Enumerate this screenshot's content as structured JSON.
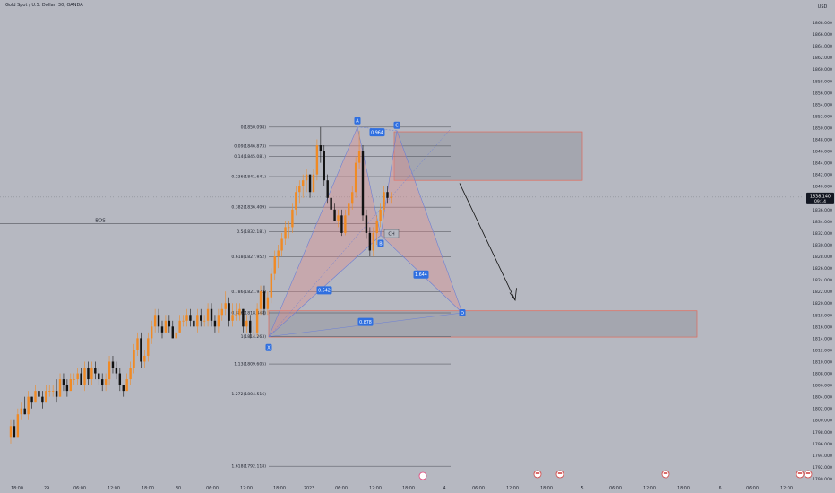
{
  "header": {
    "title": "Gold Spot / U.S. Dollar, 30, OANDA"
  },
  "chart_data": {
    "type": "candlestick",
    "currency": "USD",
    "ylim": [
      1790,
      1870
    ],
    "y_ticks": [
      "1790.000",
      "1792.000",
      "1794.000",
      "1796.000",
      "1798.000",
      "1800.000",
      "1802.000",
      "1804.000",
      "1806.000",
      "1808.000",
      "1810.000",
      "1812.000",
      "1814.000",
      "1816.000",
      "1818.000",
      "1820.000",
      "1822.000",
      "1824.000",
      "1826.000",
      "1828.000",
      "1830.000",
      "1832.000",
      "1834.000",
      "1836.000",
      "1838.000",
      "1840.000",
      "1842.000",
      "1844.000",
      "1846.000",
      "1848.000",
      "1850.000",
      "1852.000",
      "1854.000",
      "1856.000",
      "1858.000",
      "1860.000",
      "1862.000",
      "1864.000",
      "1866.000",
      "1868.000"
    ],
    "x_ticks": [
      "18:00",
      "29",
      "06:00",
      "12:00",
      "18:00",
      "30",
      "06:00",
      "12:00",
      "18:00",
      "2023",
      "06:00",
      "12:00",
      "18:00",
      "4",
      "06:00",
      "12:00",
      "18:00",
      "5",
      "06:00",
      "12:00",
      "18:00",
      "6",
      "06:00",
      "12:00"
    ],
    "current_price": {
      "value": "1838.140",
      "countdown": "09:14"
    },
    "fib_levels": [
      {
        "label": "0(1850.098)",
        "price": 1850.098
      },
      {
        "label": "0.09(1846.873)",
        "price": 1846.873
      },
      {
        "label": "0.14(1845.081)",
        "price": 1845.081
      },
      {
        "label": "0.236(1841.641)",
        "price": 1841.641
      },
      {
        "label": "0.382(1836.409)",
        "price": 1836.409
      },
      {
        "label": "0.5(1832.181)",
        "price": 1832.181
      },
      {
        "label": "0.618(1827.952)",
        "price": 1827.952
      },
      {
        "label": "0.786(1821.932)",
        "price": 1821.932
      },
      {
        "label": "0.886(1818.348)",
        "price": 1818.348
      },
      {
        "label": "1(1814.263)",
        "price": 1814.263
      },
      {
        "label": "1.13(1809.605)",
        "price": 1809.605
      },
      {
        "label": "1.272(1804.516)",
        "price": 1804.516
      },
      {
        "label": "1.618(1792.118)",
        "price": 1792.118
      }
    ],
    "pattern_points": [
      "X",
      "A",
      "B",
      "C",
      "D"
    ],
    "ratios": [
      "0.964",
      "0.542",
      "1.644",
      "0.878"
    ],
    "annotations": {
      "bos": "BOS",
      "ch": "CH"
    },
    "zones": [
      {
        "name": "supply",
        "top": 1849.3,
        "bottom": 1841.0
      },
      {
        "name": "demand",
        "top": 1818.7,
        "bottom": 1814.2
      }
    ],
    "bos_price": 1833.6,
    "candles": [
      [
        1797,
        1800,
        1796,
        1799
      ],
      [
        1799,
        1800,
        1797,
        1797
      ],
      [
        1797,
        1802,
        1797,
        1801
      ],
      [
        1801,
        1803,
        1800,
        1802
      ],
      [
        1802,
        1804,
        1801,
        1801
      ],
      [
        1801,
        1805,
        1800,
        1804
      ],
      [
        1804,
        1804,
        1802,
        1803
      ],
      [
        1803,
        1806,
        1803,
        1805
      ],
      [
        1805,
        1807,
        1804,
        1804
      ],
      [
        1804,
        1805,
        1802,
        1803
      ],
      [
        1803,
        1806,
        1803,
        1805
      ],
      [
        1805,
        1806,
        1804,
        1805
      ],
      [
        1805,
        1806,
        1804,
        1805
      ],
      [
        1805,
        1807,
        1803,
        1804
      ],
      [
        1804,
        1808,
        1804,
        1807
      ],
      [
        1807,
        1808,
        1805,
        1806
      ],
      [
        1806,
        1807,
        1804,
        1805
      ],
      [
        1805,
        1808,
        1805,
        1807
      ],
      [
        1807,
        1808,
        1806,
        1807
      ],
      [
        1807,
        1809,
        1806,
        1808
      ],
      [
        1808,
        1809,
        1806,
        1806
      ],
      [
        1806,
        1810,
        1805,
        1809
      ],
      [
        1809,
        1810,
        1806,
        1807
      ],
      [
        1807,
        1810,
        1806,
        1809
      ],
      [
        1809,
        1810,
        1807,
        1808
      ],
      [
        1808,
        1809,
        1806,
        1807
      ],
      [
        1807,
        1808,
        1805,
        1806
      ],
      [
        1806,
        1808,
        1805,
        1807
      ],
      [
        1807,
        1811,
        1806,
        1810
      ],
      [
        1810,
        1811,
        1808,
        1809
      ],
      [
        1809,
        1810,
        1807,
        1808
      ],
      [
        1808,
        1809,
        1805,
        1806
      ],
      [
        1806,
        1806,
        1804,
        1805
      ],
      [
        1805,
        1808,
        1805,
        1807
      ],
      [
        1807,
        1810,
        1806,
        1809
      ],
      [
        1809,
        1813,
        1808,
        1812
      ],
      [
        1812,
        1815,
        1811,
        1814
      ],
      [
        1814,
        1815,
        1809,
        1810
      ],
      [
        1810,
        1812,
        1809,
        1811
      ],
      [
        1811,
        1815,
        1810,
        1814
      ],
      [
        1814,
        1817,
        1813,
        1816
      ],
      [
        1816,
        1819,
        1815,
        1818
      ],
      [
        1818,
        1819,
        1815,
        1816
      ],
      [
        1816,
        1817,
        1814,
        1815
      ],
      [
        1815,
        1818,
        1815,
        1817
      ],
      [
        1817,
        1818,
        1815,
        1816
      ],
      [
        1816,
        1817,
        1814,
        1814
      ],
      [
        1814,
        1816,
        1813,
        1815
      ],
      [
        1815,
        1818,
        1815,
        1817
      ],
      [
        1817,
        1818,
        1816,
        1817
      ],
      [
        1817,
        1819,
        1816,
        1818
      ],
      [
        1818,
        1819,
        1816,
        1817
      ],
      [
        1817,
        1818,
        1815,
        1816
      ],
      [
        1816,
        1819,
        1815,
        1818
      ],
      [
        1818,
        1819,
        1816,
        1817
      ],
      [
        1817,
        1818,
        1816,
        1817
      ],
      [
        1817,
        1820,
        1816,
        1819
      ],
      [
        1819,
        1820,
        1816,
        1817
      ],
      [
        1817,
        1818,
        1815,
        1816
      ],
      [
        1816,
        1819,
        1815,
        1818
      ],
      [
        1818,
        1820,
        1817,
        1819
      ],
      [
        1819,
        1822,
        1818,
        1820
      ],
      [
        1820,
        1821,
        1816,
        1817
      ],
      [
        1817,
        1820,
        1816,
        1818
      ],
      [
        1818,
        1820,
        1817,
        1818
      ],
      [
        1818,
        1820,
        1817,
        1819
      ],
      [
        1819,
        1819,
        1815,
        1816
      ],
      [
        1816,
        1818,
        1815,
        1817
      ],
      [
        1817,
        1818,
        1814,
        1815
      ],
      [
        1815,
        1816,
        1814.2,
        1815
      ],
      [
        1815,
        1820,
        1814.3,
        1819
      ],
      [
        1819,
        1823,
        1818,
        1822
      ],
      [
        1822,
        1823,
        1818,
        1819
      ],
      [
        1819,
        1822,
        1818,
        1821
      ],
      [
        1821,
        1826,
        1820,
        1825
      ],
      [
        1825,
        1829,
        1824,
        1828
      ],
      [
        1828,
        1830,
        1826,
        1829
      ],
      [
        1829,
        1832,
        1828,
        1831
      ],
      [
        1831,
        1834,
        1830,
        1833
      ],
      [
        1833,
        1834,
        1831,
        1833
      ],
      [
        1833,
        1837,
        1832,
        1836
      ],
      [
        1836,
        1840,
        1835,
        1839
      ],
      [
        1839,
        1841,
        1837,
        1840
      ],
      [
        1840,
        1842,
        1838,
        1841
      ],
      [
        1841,
        1843,
        1839,
        1842
      ],
      [
        1842,
        1842,
        1838,
        1839
      ],
      [
        1839,
        1843,
        1839,
        1842
      ],
      [
        1842,
        1848,
        1841,
        1847
      ],
      [
        1847,
        1850.1,
        1844,
        1846
      ],
      [
        1846,
        1847,
        1840,
        1841
      ],
      [
        1841,
        1842,
        1837,
        1838
      ],
      [
        1838,
        1839,
        1835,
        1836
      ],
      [
        1836,
        1837,
        1834,
        1834
      ],
      [
        1834,
        1836,
        1833,
        1835
      ],
      [
        1835,
        1836,
        1831.5,
        1832
      ],
      [
        1832,
        1836,
        1831.6,
        1835
      ],
      [
        1835,
        1838,
        1834,
        1837
      ],
      [
        1837,
        1840,
        1836,
        1839
      ],
      [
        1839,
        1845,
        1838,
        1844
      ],
      [
        1844,
        1849.5,
        1843,
        1846
      ],
      [
        1846,
        1847,
        1834,
        1835
      ],
      [
        1835,
        1836,
        1831,
        1832
      ],
      [
        1832,
        1833,
        1828,
        1829
      ],
      [
        1829,
        1833,
        1828,
        1832
      ],
      [
        1832,
        1835,
        1830,
        1834
      ],
      [
        1834,
        1837,
        1833,
        1836
      ],
      [
        1836,
        1840,
        1835,
        1839
      ],
      [
        1839,
        1840,
        1837,
        1838
      ],
      [
        1838,
        1839,
        1837,
        1838.14
      ]
    ]
  }
}
